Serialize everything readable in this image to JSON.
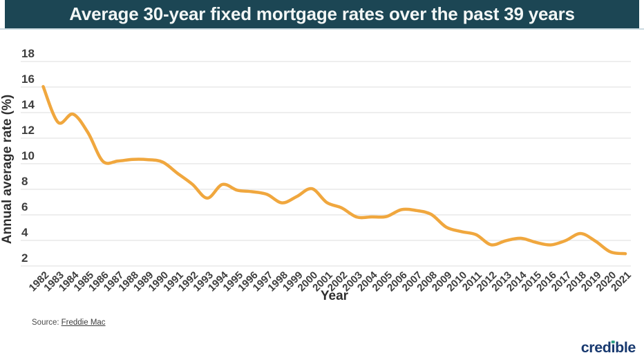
{
  "header": {
    "title": "Average 30-year fixed mortgage rates over the past 39 years",
    "background_color": "#1C4654",
    "text_color": "#F3F7F6"
  },
  "chart_data": {
    "type": "line",
    "title": "Average 30-year fixed mortgage rates over the past 39 years",
    "xlabel": "Year",
    "ylabel": "Annual average rate (%)",
    "x": [
      "1982",
      "1983",
      "1984",
      "1985",
      "1986",
      "1987",
      "1988",
      "1989",
      "1990",
      "1991",
      "1992",
      "1993",
      "1994",
      "1995",
      "1996",
      "1997",
      "1998",
      "1999",
      "2000",
      "2001",
      "2002",
      "2003",
      "2004",
      "2005",
      "2006",
      "2007",
      "2008",
      "2009",
      "2010",
      "2011",
      "2012",
      "2013",
      "2014",
      "2015",
      "2016",
      "2017",
      "2018",
      "2019",
      "2020",
      "2021"
    ],
    "series_name": "Average 30-year fixed mortgage rate",
    "values": [
      16.04,
      13.24,
      13.88,
      12.43,
      10.19,
      10.21,
      10.34,
      10.32,
      10.13,
      9.25,
      8.39,
      7.31,
      8.38,
      7.93,
      7.81,
      7.6,
      6.94,
      7.44,
      8.05,
      6.97,
      6.54,
      5.83,
      5.84,
      5.87,
      6.41,
      6.34,
      6.03,
      5.04,
      4.69,
      4.45,
      3.66,
      3.98,
      4.17,
      3.85,
      3.65,
      3.99,
      4.54,
      3.94,
      3.1,
      2.96
    ],
    "yticks": [
      2,
      4,
      6,
      8,
      10,
      12,
      14,
      16,
      18
    ],
    "ylim": [
      2,
      18
    ],
    "grid": "horizontal",
    "legend": "none",
    "line_color": "#F0A73E",
    "gridline_color": "#DCDCDC",
    "tick_label_color": "#3D3D3D"
  },
  "footer": {
    "source_prefix": "Source:",
    "source_link": "Freddie Mac"
  },
  "logo": {
    "name": "credible",
    "part1": "cred",
    "dotless_i": "ı",
    "part2": "ble",
    "color": "#18396F",
    "dot_color": "#2E9E82"
  }
}
